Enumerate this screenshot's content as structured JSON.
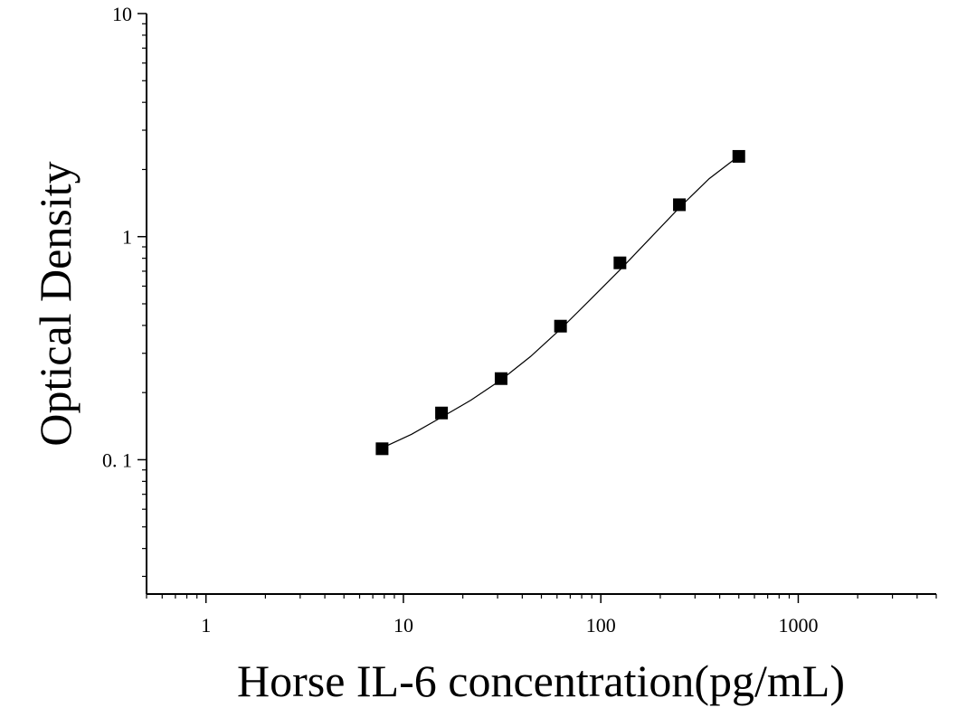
{
  "chart_data": {
    "type": "scatter",
    "x_label": "Horse IL-6 concentration(pg/mL)",
    "y_label": "Optical Density",
    "log_x": true,
    "log_y": true,
    "xlim": [
      0.5,
      5000
    ],
    "ylim": [
      0.025,
      10
    ],
    "xticks": [
      1,
      10,
      100,
      1000
    ],
    "yticks": [
      {
        "value": 0.1,
        "label": "0. 1"
      },
      1,
      10
    ],
    "xminorticks": [
      0.5,
      0.6,
      0.7,
      0.8,
      0.9,
      2,
      3,
      4,
      5,
      6,
      7,
      8,
      9,
      20,
      30,
      40,
      50,
      60,
      70,
      80,
      90,
      200,
      300,
      400,
      500,
      600,
      700,
      800,
      900,
      2000,
      3000,
      4000,
      5000
    ],
    "yminorticks": [
      0.03,
      0.04,
      0.05,
      0.06,
      0.07,
      0.08,
      0.09,
      0.2,
      0.3,
      0.4,
      0.5,
      0.6,
      0.7,
      0.8,
      0.9,
      2,
      3,
      4,
      5,
      6,
      7,
      8,
      9
    ],
    "color": "#000000",
    "x": [
      7.8,
      15.6,
      31.25,
      62.5,
      125,
      250,
      500
    ],
    "values": [
      0.112,
      0.162,
      0.231,
      0.397,
      0.763,
      1.39,
      2.29
    ],
    "curve": {
      "x": [
        7.8,
        11,
        15.6,
        22,
        31.25,
        44,
        62.5,
        88,
        125,
        177,
        250,
        354,
        500
      ],
      "y": [
        0.113,
        0.13,
        0.155,
        0.185,
        0.228,
        0.29,
        0.385,
        0.52,
        0.71,
        0.98,
        1.35,
        1.82,
        2.3
      ]
    }
  }
}
